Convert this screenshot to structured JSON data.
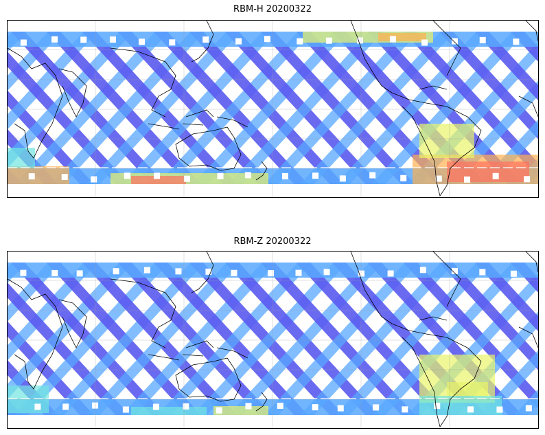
{
  "panels": [
    {
      "id": "top",
      "title": "RBM-H 20200322",
      "projection": "plate carree, cropped to roughly 60N to 60S",
      "field_pattern": "crossing satellite swaths with a latitude gap band near the southern edge",
      "high_value_regions": [
        "southern ocean band",
        "South Atlantic east of South America",
        "northern Atlantic strip"
      ],
      "colormap": [
        "#5a5af0",
        "#58a8ff",
        "#70e6e0",
        "#e8f46a",
        "#ffb050",
        "#ff7060"
      ]
    },
    {
      "id": "bottom",
      "title": "RBM-Z 20200322",
      "projection": "plate carree, cropped to roughly 60N to 60S",
      "field_pattern": "crossing satellite swaths with a latitude gap band near the southern edge",
      "high_value_regions": [
        "eastern South America",
        "southern ocean near Australia"
      ],
      "colormap": [
        "#5a5af0",
        "#58a8ff",
        "#70e6e0",
        "#e8f46a",
        "#ffb050",
        "#ff7060"
      ]
    }
  ]
}
